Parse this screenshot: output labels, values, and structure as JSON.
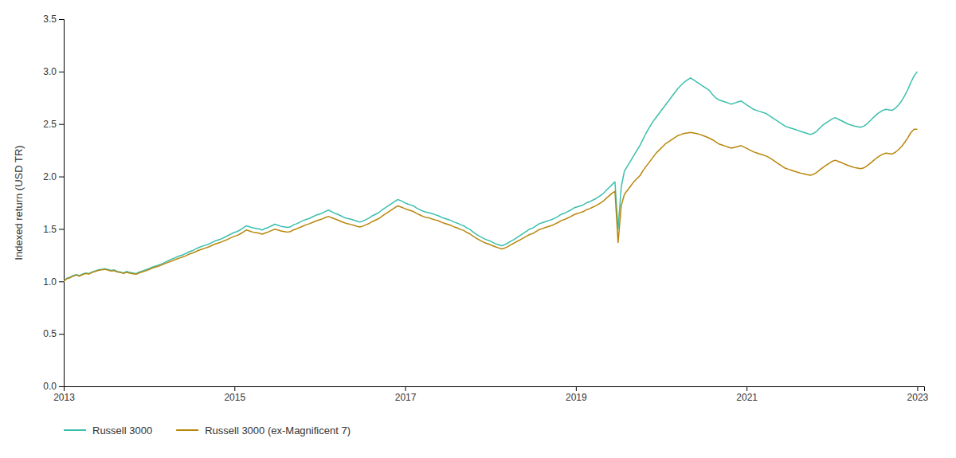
{
  "chart_data": {
    "type": "line",
    "ylabel": "Indexed return (USD TR)",
    "xlim": [
      2013.0,
      2023.08
    ],
    "ylim": [
      0.0,
      3.5
    ],
    "yticks": [
      {
        "value": 0.0,
        "label": "0.0"
      },
      0.5,
      {
        "value": 1.0,
        "label": "1.0"
      },
      1.5,
      {
        "value": 2.0,
        "label": "2.0"
      },
      2.5,
      {
        "value": 3.0,
        "label": "3.0"
      },
      3.5
    ],
    "xticks": [
      2013,
      2015,
      2017,
      2019,
      2021,
      2023
    ],
    "grid": false,
    "legend": "bottom",
    "x": [
      2013.0,
      2013.0369,
      2013.0738,
      2013.1107,
      2013.1476,
      2013.1845,
      2013.2214,
      2013.2583,
      2013.2952,
      2013.3321,
      2013.369,
      2013.4059,
      2013.4428,
      2013.4797,
      2013.5166,
      2013.5535,
      2013.5904,
      2013.6273,
      2013.6642,
      2013.7011,
      2013.738,
      2013.7749,
      2013.8118,
      2013.8487,
      2013.8856,
      2013.9225,
      2013.9594,
      2013.9963,
      2014.0332,
      2014.0701,
      2014.107,
      2014.1439,
      2014.1808,
      2014.2177,
      2014.2546,
      2014.2915,
      2014.3284,
      2014.3653,
      2014.4022,
      2014.4391,
      2014.476,
      2014.5129,
      2014.5498,
      2014.5867,
      2014.6236,
      2014.6605,
      2014.6974,
      2014.7343,
      2014.7712,
      2014.8081,
      2014.845,
      2014.8819,
      2014.9188,
      2014.9557,
      2014.9926,
      2015.0295,
      2015.0664,
      2015.1033,
      2015.1402,
      2015.1771,
      2015.214,
      2015.2509,
      2015.2878,
      2015.3247,
      2015.3616,
      2015.3985,
      2015.4354,
      2015.4723,
      2015.5092,
      2015.5461,
      2015.583,
      2015.6199,
      2015.6568,
      2015.6937,
      2015.7306,
      2015.7675,
      2015.8044,
      2015.8413,
      2015.8782,
      2015.9151,
      2015.952,
      2015.9889,
      2016.0258,
      2016.0627,
      2016.0996,
      2016.1365,
      2016.1734,
      2016.2103,
      2016.2472,
      2016.2841,
      2016.321,
      2016.3579,
      2016.3948,
      2016.4317,
      2016.4686,
      2016.5055,
      2016.5424,
      2016.5793,
      2016.6162,
      2016.6531,
      2016.69,
      2016.7269,
      2016.7638,
      2016.8007,
      2016.8376,
      2016.8745,
      2016.9114,
      2016.9483,
      2016.9852,
      2017.0221,
      2017.059,
      2017.0959,
      2017.1328,
      2017.1697,
      2017.2066,
      2017.2435,
      2017.2804,
      2017.3173,
      2017.3542,
      2017.3911,
      2017.428,
      2017.4649,
      2017.5018,
      2017.5387,
      2017.5756,
      2017.6125,
      2017.6494,
      2017.6863,
      2017.7232,
      2017.7601,
      2017.797,
      2017.8339,
      2017.8708,
      2017.9077,
      2017.9446,
      2017.9815,
      2018.0185,
      2018.0554,
      2018.0923,
      2018.1292,
      2018.1661,
      2018.203,
      2018.2399,
      2018.2768,
      2018.3137,
      2018.3506,
      2018.3875,
      2018.4244,
      2018.4613,
      2018.4982,
      2018.5351,
      2018.572,
      2018.6089,
      2018.6458,
      2018.6827,
      2018.7196,
      2018.7565,
      2018.7934,
      2018.8303,
      2018.8672,
      2018.9041,
      2018.941,
      2018.9779,
      2019.0148,
      2019.0517,
      2019.0886,
      2019.1255,
      2019.1624,
      2019.1993,
      2019.2362,
      2019.2731,
      2019.31,
      2019.3469,
      2019.3838,
      2019.4207,
      2019.4576,
      2019.4945,
      2019.5314,
      2019.5683,
      2019.6052,
      2019.6421,
      2019.679,
      2019.7159,
      2019.7528,
      2019.7897,
      2019.8266,
      2019.8635,
      2019.9004,
      2019.9373,
      2019.9742,
      2020.0111,
      2020.048,
      2020.0849,
      2020.1218,
      2020.1587,
      2020.1956,
      2020.2325,
      2020.2694,
      2020.3063,
      2020.3432,
      2020.3801,
      2020.417,
      2020.4539,
      2020.4908,
      2020.5277,
      2020.5646,
      2020.6015,
      2020.6384,
      2020.6753,
      2020.7122,
      2020.7491,
      2020.786,
      2020.8229,
      2020.8598,
      2020.8967,
      2020.9336,
      2020.9705,
      2021.0074,
      2021.0443,
      2021.0812,
      2021.1181,
      2021.155,
      2021.1919,
      2021.2288,
      2021.2657,
      2021.3026,
      2021.3395,
      2021.3764,
      2021.4133,
      2021.4502,
      2021.4871,
      2021.524,
      2021.5609,
      2021.5978,
      2021.6347,
      2021.6716,
      2021.7085,
      2021.7454,
      2021.7823,
      2021.8192,
      2021.8561,
      2021.893,
      2021.9299,
      2021.9668,
      2022.0037,
      2022.0406,
      2022.0775,
      2022.1144,
      2022.1513,
      2022.1882,
      2022.2251,
      2022.262,
      2022.2989,
      2022.3358,
      2022.3727,
      2022.4096,
      2022.4465,
      2022.4834,
      2022.5203,
      2022.5572,
      2022.5941,
      2022.631,
      2022.6679,
      2022.7048,
      2022.7417,
      2022.7786,
      2022.8155,
      2022.8524,
      2022.8893,
      2022.9262,
      2022.9631,
      2023.0
    ],
    "series": [
      {
        "name": "Russell 3000",
        "color": "#3BBFAD",
        "values": [
          1.0,
          1.03,
          1.04,
          1.055,
          1.065,
          1.055,
          1.07,
          1.08,
          1.075,
          1.09,
          1.1,
          1.11,
          1.115,
          1.12,
          1.115,
          1.105,
          1.11,
          1.095,
          1.09,
          1.08,
          1.095,
          1.085,
          1.08,
          1.075,
          1.09,
          1.1,
          1.11,
          1.12,
          1.135,
          1.145,
          1.155,
          1.165,
          1.18,
          1.195,
          1.21,
          1.22,
          1.235,
          1.245,
          1.255,
          1.27,
          1.285,
          1.295,
          1.31,
          1.325,
          1.335,
          1.345,
          1.355,
          1.37,
          1.385,
          1.395,
          1.405,
          1.42,
          1.435,
          1.45,
          1.465,
          1.475,
          1.49,
          1.51,
          1.53,
          1.52,
          1.51,
          1.505,
          1.5,
          1.49,
          1.505,
          1.515,
          1.53,
          1.545,
          1.535,
          1.525,
          1.52,
          1.515,
          1.52,
          1.54,
          1.55,
          1.565,
          1.58,
          1.59,
          1.6,
          1.615,
          1.63,
          1.64,
          1.65,
          1.665,
          1.68,
          1.665,
          1.65,
          1.64,
          1.625,
          1.61,
          1.6,
          1.595,
          1.585,
          1.575,
          1.565,
          1.575,
          1.59,
          1.605,
          1.625,
          1.64,
          1.655,
          1.68,
          1.7,
          1.72,
          1.74,
          1.76,
          1.78,
          1.77,
          1.755,
          1.74,
          1.73,
          1.72,
          1.7,
          1.685,
          1.67,
          1.66,
          1.655,
          1.645,
          1.635,
          1.625,
          1.61,
          1.6,
          1.59,
          1.58,
          1.565,
          1.555,
          1.54,
          1.53,
          1.51,
          1.495,
          1.47,
          1.45,
          1.43,
          1.415,
          1.4,
          1.39,
          1.375,
          1.36,
          1.35,
          1.34,
          1.35,
          1.365,
          1.385,
          1.4,
          1.42,
          1.44,
          1.46,
          1.48,
          1.5,
          1.51,
          1.53,
          1.55,
          1.56,
          1.57,
          1.58,
          1.59,
          1.605,
          1.62,
          1.64,
          1.65,
          1.665,
          1.68,
          1.7,
          1.71,
          1.72,
          1.73,
          1.75,
          1.76,
          1.775,
          1.79,
          1.81,
          1.83,
          1.86,
          1.89,
          1.92,
          1.95,
          1.5,
          1.9,
          2.05,
          2.1,
          2.15,
          2.2,
          2.25,
          2.3,
          2.36,
          2.42,
          2.47,
          2.52,
          2.56,
          2.6,
          2.64,
          2.68,
          2.72,
          2.76,
          2.8,
          2.84,
          2.87,
          2.9,
          2.92,
          2.94,
          2.92,
          2.9,
          2.88,
          2.86,
          2.84,
          2.82,
          2.78,
          2.75,
          2.73,
          2.72,
          2.71,
          2.7,
          2.69,
          2.7,
          2.71,
          2.72,
          2.7,
          2.68,
          2.66,
          2.64,
          2.63,
          2.62,
          2.61,
          2.6,
          2.58,
          2.56,
          2.54,
          2.52,
          2.5,
          2.48,
          2.47,
          2.46,
          2.45,
          2.44,
          2.43,
          2.42,
          2.41,
          2.4,
          2.41,
          2.43,
          2.46,
          2.49,
          2.51,
          2.53,
          2.55,
          2.56,
          2.545,
          2.53,
          2.515,
          2.5,
          2.49,
          2.48,
          2.475,
          2.47,
          2.48,
          2.5,
          2.53,
          2.56,
          2.59,
          2.61,
          2.63,
          2.64,
          2.635,
          2.63,
          2.65,
          2.68,
          2.72,
          2.77,
          2.83,
          2.9,
          2.96,
          3.0
        ]
      },
      {
        "name": "Russell 3000 (ex-Magnificent 7)",
        "color": "#B8860B",
        "values": [
          1.0,
          1.025,
          1.035,
          1.05,
          1.06,
          1.05,
          1.065,
          1.075,
          1.07,
          1.085,
          1.095,
          1.105,
          1.11,
          1.115,
          1.108,
          1.098,
          1.103,
          1.09,
          1.085,
          1.075,
          1.088,
          1.078,
          1.073,
          1.068,
          1.082,
          1.092,
          1.1,
          1.112,
          1.125,
          1.135,
          1.145,
          1.155,
          1.168,
          1.18,
          1.192,
          1.202,
          1.215,
          1.225,
          1.235,
          1.248,
          1.262,
          1.272,
          1.285,
          1.298,
          1.308,
          1.318,
          1.328,
          1.342,
          1.355,
          1.365,
          1.375,
          1.388,
          1.4,
          1.415,
          1.428,
          1.438,
          1.452,
          1.47,
          1.49,
          1.48,
          1.47,
          1.465,
          1.46,
          1.45,
          1.462,
          1.472,
          1.485,
          1.498,
          1.49,
          1.48,
          1.475,
          1.47,
          1.475,
          1.492,
          1.502,
          1.515,
          1.528,
          1.54,
          1.55,
          1.562,
          1.575,
          1.585,
          1.595,
          1.608,
          1.62,
          1.608,
          1.596,
          1.585,
          1.572,
          1.56,
          1.55,
          1.544,
          1.535,
          1.526,
          1.518,
          1.527,
          1.54,
          1.553,
          1.57,
          1.585,
          1.598,
          1.62,
          1.64,
          1.66,
          1.68,
          1.7,
          1.72,
          1.71,
          1.698,
          1.686,
          1.676,
          1.666,
          1.648,
          1.634,
          1.62,
          1.61,
          1.605,
          1.595,
          1.586,
          1.577,
          1.563,
          1.553,
          1.543,
          1.533,
          1.519,
          1.509,
          1.495,
          1.485,
          1.467,
          1.452,
          1.43,
          1.412,
          1.394,
          1.379,
          1.365,
          1.355,
          1.342,
          1.33,
          1.32,
          1.31,
          1.318,
          1.332,
          1.35,
          1.365,
          1.382,
          1.398,
          1.415,
          1.432,
          1.448,
          1.458,
          1.476,
          1.494,
          1.504,
          1.514,
          1.524,
          1.534,
          1.548,
          1.562,
          1.58,
          1.59,
          1.604,
          1.618,
          1.636,
          1.646,
          1.656,
          1.666,
          1.684,
          1.694,
          1.708,
          1.722,
          1.74,
          1.758,
          1.785,
          1.812,
          1.838,
          1.86,
          1.37,
          1.72,
          1.83,
          1.87,
          1.91,
          1.95,
          1.98,
          2.01,
          2.06,
          2.1,
          2.14,
          2.18,
          2.22,
          2.25,
          2.28,
          2.31,
          2.33,
          2.35,
          2.37,
          2.39,
          2.4,
          2.41,
          2.415,
          2.42,
          2.415,
          2.408,
          2.4,
          2.39,
          2.378,
          2.365,
          2.35,
          2.33,
          2.31,
          2.3,
          2.29,
          2.28,
          2.27,
          2.278,
          2.286,
          2.294,
          2.28,
          2.265,
          2.25,
          2.235,
          2.225,
          2.215,
          2.205,
          2.195,
          2.18,
          2.16,
          2.14,
          2.12,
          2.1,
          2.08,
          2.07,
          2.06,
          2.05,
          2.04,
          2.032,
          2.025,
          2.018,
          2.012,
          2.02,
          2.038,
          2.062,
          2.085,
          2.105,
          2.125,
          2.145,
          2.155,
          2.143,
          2.131,
          2.118,
          2.105,
          2.095,
          2.085,
          2.08,
          2.075,
          2.082,
          2.1,
          2.125,
          2.15,
          2.175,
          2.195,
          2.212,
          2.222,
          2.218,
          2.214,
          2.23,
          2.255,
          2.285,
          2.325,
          2.37,
          2.42,
          2.45,
          2.45
        ]
      }
    ]
  }
}
